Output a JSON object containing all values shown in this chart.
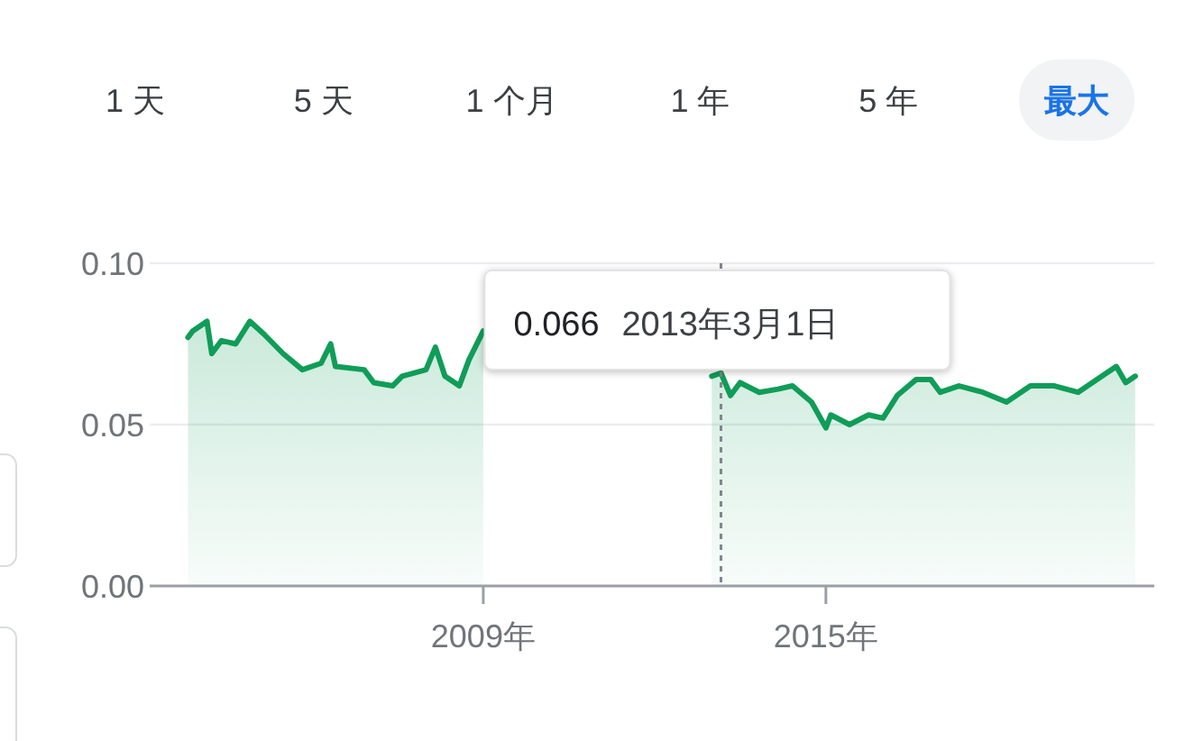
{
  "chart_data": {
    "type": "area",
    "x": [
      "2003-11",
      "2003-12",
      "2004-03",
      "2004-04",
      "2004-06",
      "2004-09",
      "2004-12",
      "2005-03",
      "2005-07",
      "2005-11",
      "2006-03",
      "2006-05",
      "2006-06",
      "2006-12",
      "2007-02",
      "2007-06",
      "2007-08",
      "2008-01",
      "2008-03",
      "2008-05",
      "2008-08",
      "2008-10",
      "2009-01",
      "2009-02",
      "2009-04",
      "2012-11",
      "2013-01",
      "2013-03-01",
      "2013-05",
      "2013-07",
      "2013-11",
      "2014-03",
      "2014-06",
      "2014-10",
      "2015-01",
      "2015-02",
      "2015-06",
      "2015-10",
      "2016-01",
      "2016-04",
      "2016-08",
      "2016-11",
      "2017-01",
      "2017-05",
      "2017-10",
      "2018-03",
      "2018-08",
      "2019-01",
      "2019-06",
      "2019-11",
      "2020-02",
      "2020-04",
      "2020-06"
    ],
    "series": [
      {
        "color": "#0f9d58",
        "values": [
          0.077,
          0.079,
          0.082,
          0.072,
          0.076,
          0.075,
          0.082,
          0.078,
          0.072,
          0.067,
          0.069,
          0.075,
          0.068,
          0.067,
          0.063,
          0.062,
          0.065,
          0.067,
          0.074,
          0.065,
          0.062,
          0.07,
          0.079,
          null,
          null,
          null,
          0.065,
          0.066,
          0.059,
          0.063,
          0.06,
          0.061,
          0.062,
          0.057,
          0.049,
          0.053,
          0.05,
          0.053,
          0.052,
          0.059,
          0.064,
          0.064,
          0.06,
          0.062,
          0.06,
          0.057,
          0.062,
          0.062,
          0.06,
          0.065,
          0.068,
          0.063,
          0.065
        ]
      }
    ],
    "xlim": [
      "2003-03",
      "2020-10"
    ],
    "xticks": [
      {
        "value": "2009",
        "label": "2009年"
      },
      {
        "value": "2015",
        "label": "2015年"
      }
    ],
    "ylim": [
      0,
      0.1
    ],
    "yticks": [
      {
        "value": 0,
        "label": "0.00"
      },
      {
        "value": 0.05,
        "label": "0.05"
      },
      {
        "value": 0.1,
        "label": "0.10"
      }
    ],
    "grid": "y",
    "ref_lines": [
      {
        "axis": "x",
        "value": "2013-03-01",
        "label": "2013年3月1日",
        "line_style": "dotted"
      }
    ],
    "annotations": [
      "0.066",
      "1 天",
      "5 天",
      "1 个月",
      "1 年",
      "5 年",
      "最大"
    ]
  }
}
